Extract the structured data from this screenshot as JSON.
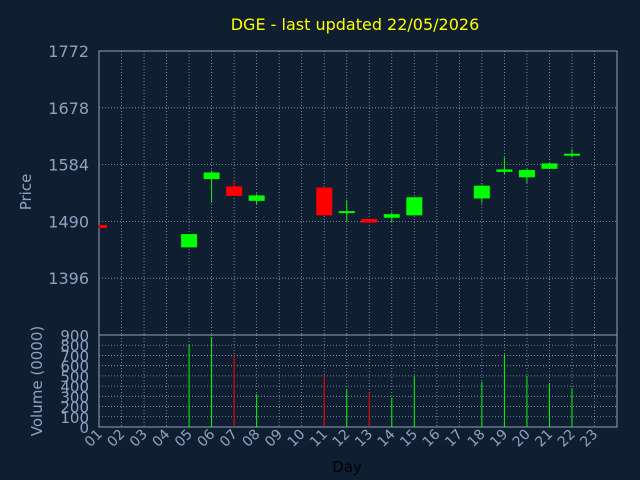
{
  "chart_data": {
    "type": "candlestick",
    "title": "DGE - last updated 22/05/2026",
    "xlabel": "Day",
    "ylabel": "Price",
    "volume_label": "Volume (0000)",
    "x_ticks": [
      "01",
      "02",
      "03",
      "04",
      "05",
      "06",
      "07",
      "08",
      "09",
      "10",
      "11",
      "12",
      "13",
      "14",
      "15",
      "16",
      "17",
      "18",
      "19",
      "20",
      "21",
      "22",
      "23"
    ],
    "price_ticks": [
      1396,
      1490,
      1584,
      1678,
      1772
    ],
    "price_ylim": [
      1302,
      1772
    ],
    "volume_ticks": [
      0,
      100,
      200,
      300,
      400,
      500,
      600,
      700,
      800,
      900
    ],
    "volume_ylim": [
      0,
      900
    ],
    "grid": true,
    "colors": {
      "up": "#00ff00",
      "down": "#ff0000",
      "title": "#ffff00",
      "background": "#0f1e31",
      "grid": "#8fa3c0"
    },
    "candles": [
      {
        "day": "01",
        "open": 1484,
        "high": 1484,
        "low": 1479,
        "close": 1479,
        "volume": 0
      },
      {
        "day": "05",
        "open": 1447,
        "high": 1469,
        "low": 1447,
        "close": 1469,
        "volume": 810
      },
      {
        "day": "06",
        "open": 1560,
        "high": 1574,
        "low": 1521,
        "close": 1571,
        "volume": 880
      },
      {
        "day": "07",
        "open": 1548,
        "high": 1558,
        "low": 1532,
        "close": 1532,
        "volume": 700
      },
      {
        "day": "08",
        "open": 1524,
        "high": 1536,
        "low": 1518,
        "close": 1533,
        "volume": 320
      },
      {
        "day": "11",
        "open": 1546,
        "high": 1546,
        "low": 1500,
        "close": 1500,
        "volume": 510
      },
      {
        "day": "12",
        "open": 1507,
        "high": 1525,
        "low": 1490,
        "close": 1507,
        "volume": 370
      },
      {
        "day": "13",
        "open": 1494,
        "high": 1494,
        "low": 1488,
        "close": 1488,
        "volume": 330
      },
      {
        "day": "14",
        "open": 1496,
        "high": 1505,
        "low": 1489,
        "close": 1502,
        "volume": 290
      },
      {
        "day": "15",
        "open": 1500,
        "high": 1530,
        "low": 1500,
        "close": 1530,
        "volume": 500
      },
      {
        "day": "18",
        "open": 1528,
        "high": 1551,
        "low": 1520,
        "close": 1549,
        "volume": 440
      },
      {
        "day": "19",
        "open": 1572,
        "high": 1596,
        "low": 1568,
        "close": 1576,
        "volume": 710
      },
      {
        "day": "20",
        "open": 1563,
        "high": 1578,
        "low": 1553,
        "close": 1575,
        "volume": 500
      },
      {
        "day": "21",
        "open": 1577,
        "high": 1587,
        "low": 1577,
        "close": 1586,
        "volume": 420
      },
      {
        "day": "22",
        "open": 1599,
        "high": 1610,
        "low": 1596,
        "close": 1602,
        "volume": 380
      }
    ]
  }
}
